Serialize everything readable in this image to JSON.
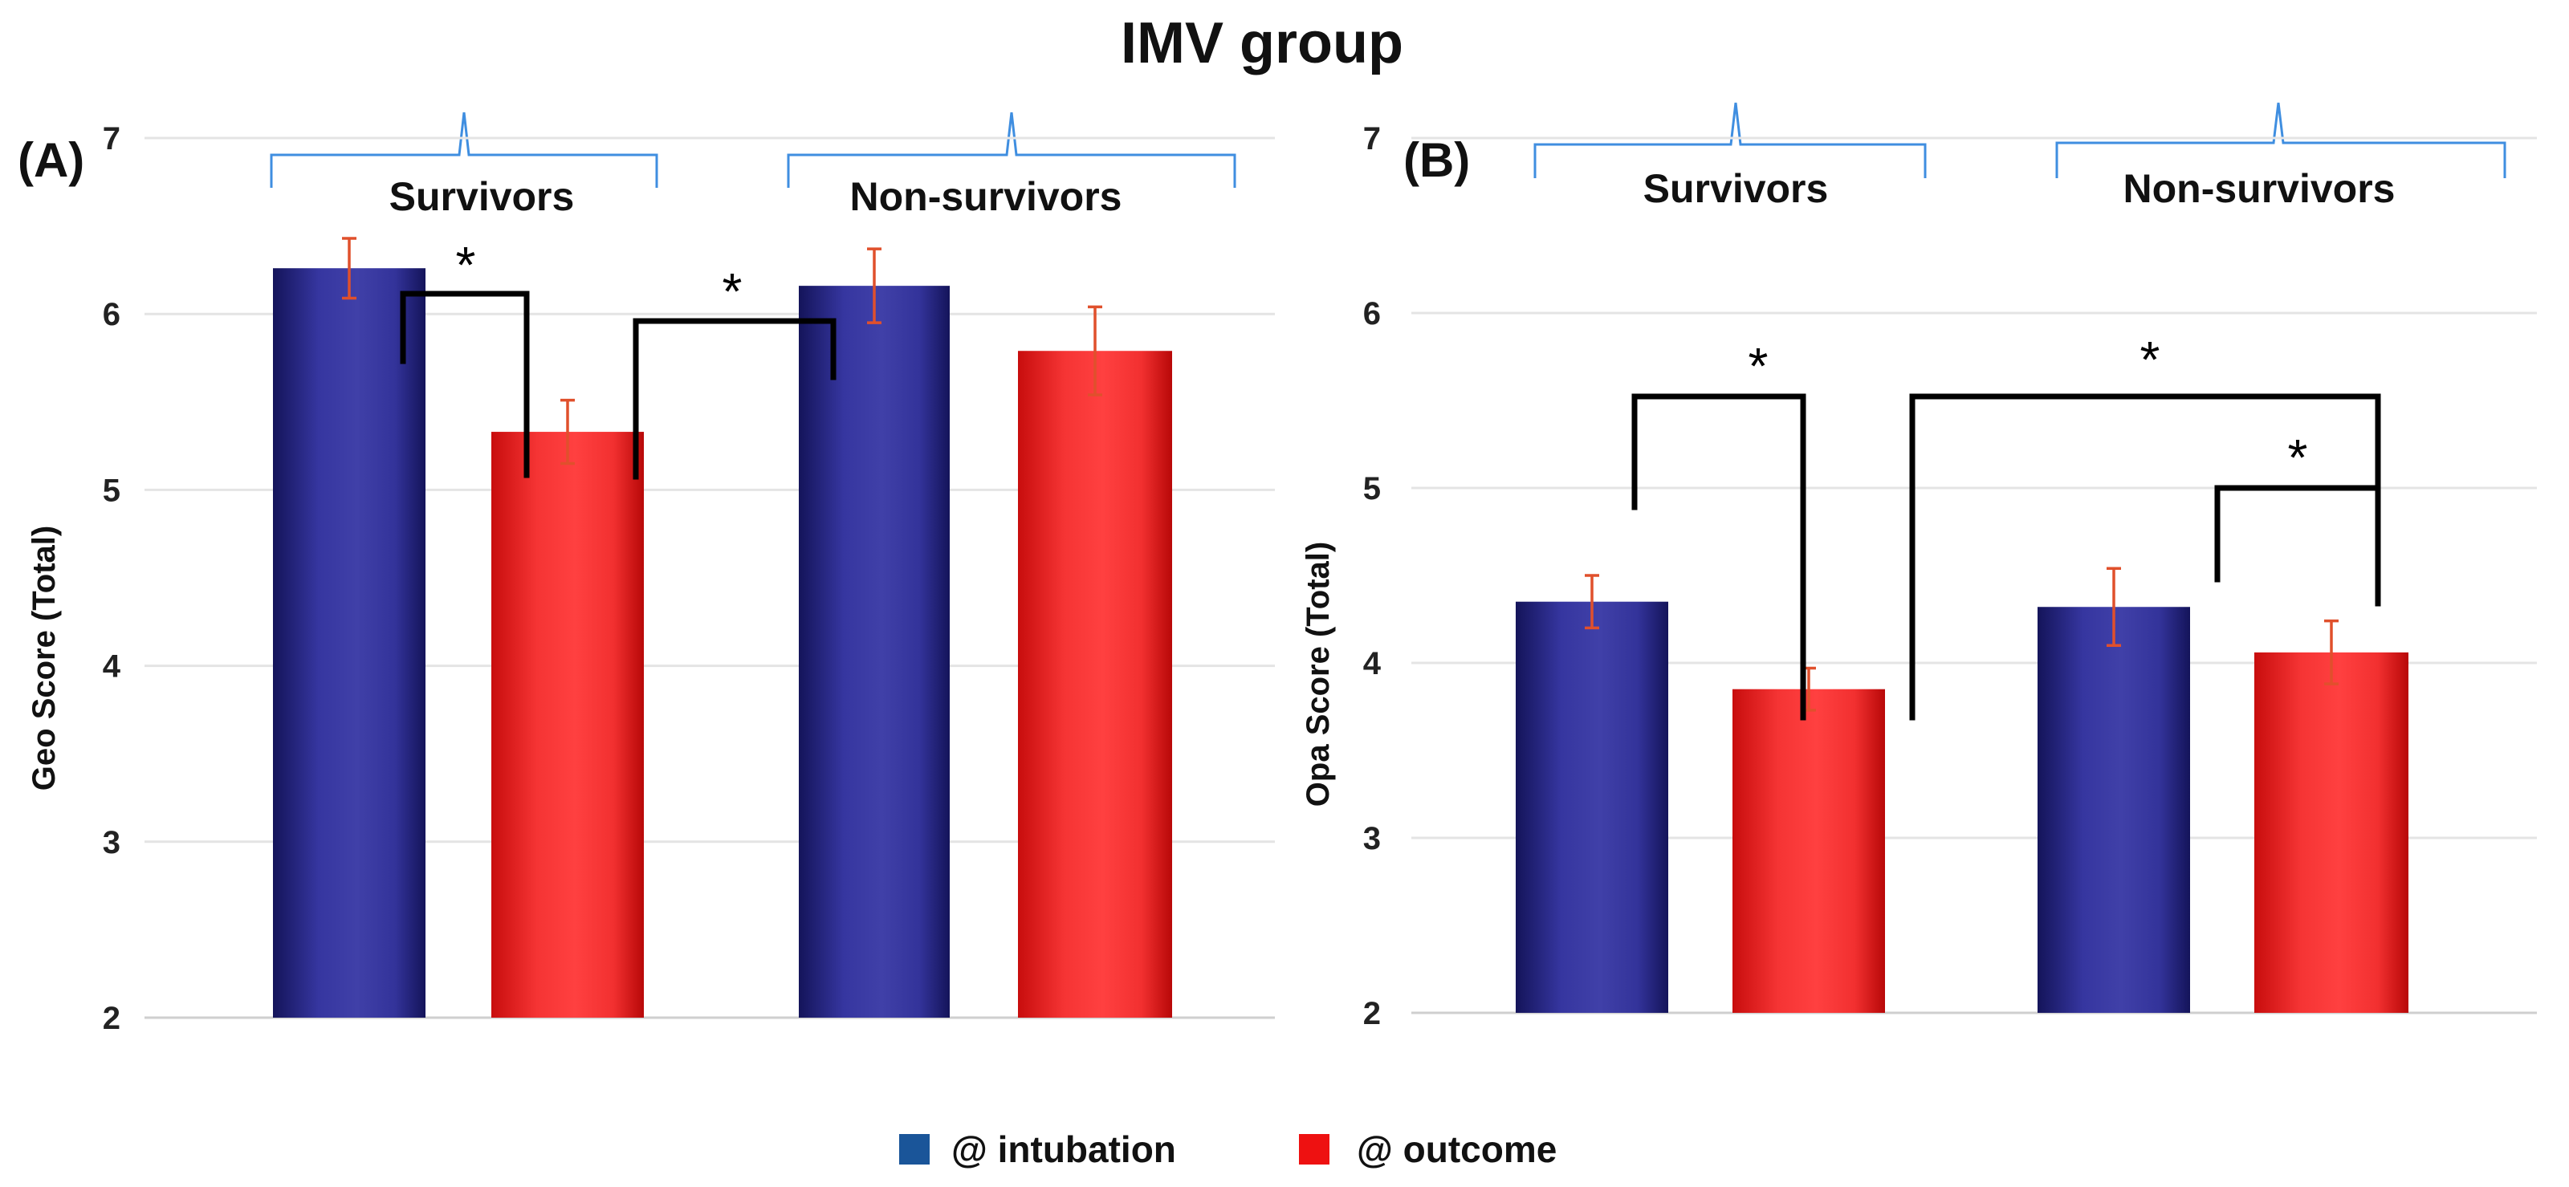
{
  "figure": {
    "title": "IMV group",
    "legend": [
      {
        "label": "@ intubation",
        "color": "#1a5599"
      },
      {
        "label": "@ outcome",
        "color": "#ee1111"
      }
    ]
  },
  "colors": {
    "intubation_bar": "#2e2e8c",
    "outcome_bar": "#f02323",
    "error_bar": "#e0502c",
    "brace": "#3f8ee0"
  },
  "chart_data": [
    {
      "panel": "(A)",
      "type": "bar",
      "ylabel": "Geo Score (Total)",
      "ylim": [
        2,
        7
      ],
      "yticks": [
        2,
        3,
        4,
        5,
        6,
        7
      ],
      "groups": [
        "Survivors",
        "Non-survivors"
      ],
      "series": [
        {
          "name": "@ intubation",
          "values": [
            6.26,
            6.16
          ],
          "errors": [
            0.17,
            0.21
          ]
        },
        {
          "name": "@ outcome",
          "values": [
            5.33,
            5.79
          ],
          "errors": [
            0.18,
            0.25
          ]
        }
      ],
      "significance": [
        {
          "from": "Survivors @ intubation",
          "to": "Survivors @ outcome",
          "label": "*"
        },
        {
          "from": "Survivors @ outcome",
          "to": "Non-survivors @ intubation",
          "label": "*"
        }
      ]
    },
    {
      "panel": "(B)",
      "type": "bar",
      "ylabel": "Opa Score (Total)",
      "ylim": [
        2,
        7
      ],
      "yticks": [
        2,
        3,
        4,
        5,
        6,
        7
      ],
      "groups": [
        "Survivors",
        "Non-survivors"
      ],
      "series": [
        {
          "name": "@ intubation",
          "values": [
            4.35,
            4.32
          ],
          "errors": [
            0.15,
            0.22
          ]
        },
        {
          "name": "@ outcome",
          "values": [
            3.85,
            4.06
          ],
          "errors": [
            0.12,
            0.18
          ]
        }
      ],
      "significance": [
        {
          "from": "Survivors @ intubation",
          "to": "Survivors @ outcome",
          "label": "*"
        },
        {
          "from": "Survivors @ outcome",
          "to": "Non-survivors @ outcome",
          "label": "*"
        },
        {
          "from": "Non-survivors @ intubation",
          "to": "Non-survivors @ outcome",
          "label": "*"
        }
      ]
    }
  ]
}
